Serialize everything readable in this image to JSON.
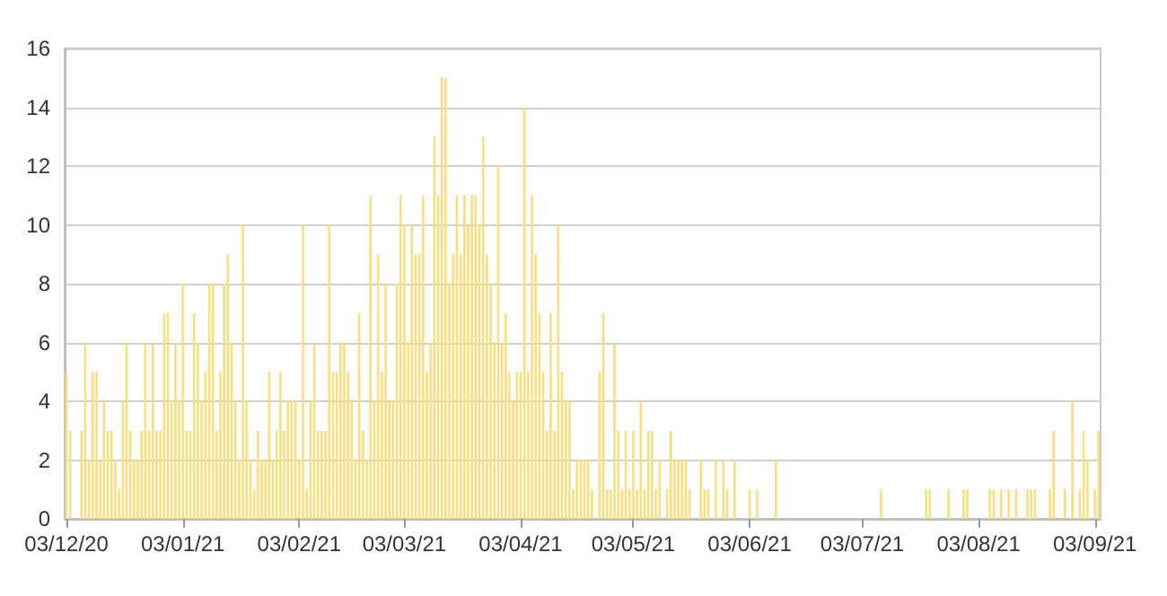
{
  "chart_data": {
    "type": "bar",
    "x": [
      "2020-12-03",
      "2020-12-04",
      "2020-12-05",
      "2020-12-06",
      "2020-12-07",
      "2020-12-08",
      "2020-12-09",
      "2020-12-10",
      "2020-12-11",
      "2020-12-12",
      "2020-12-13",
      "2020-12-14",
      "2020-12-15",
      "2020-12-16",
      "2020-12-17",
      "2020-12-18",
      "2020-12-19",
      "2020-12-20",
      "2020-12-21",
      "2020-12-22",
      "2020-12-23",
      "2020-12-24",
      "2020-12-25",
      "2020-12-26",
      "2020-12-27",
      "2020-12-28",
      "2020-12-29",
      "2020-12-30",
      "2020-12-31",
      "2021-01-01",
      "2021-01-02",
      "2021-01-03",
      "2021-01-04",
      "2021-01-05",
      "2021-01-06",
      "2021-01-07",
      "2021-01-08",
      "2021-01-09",
      "2021-01-10",
      "2021-01-11",
      "2021-01-12",
      "2021-01-13",
      "2021-01-14",
      "2021-01-15",
      "2021-01-16",
      "2021-01-17",
      "2021-01-18",
      "2021-01-19",
      "2021-01-20",
      "2021-01-21",
      "2021-01-22",
      "2021-01-23",
      "2021-01-24",
      "2021-01-25",
      "2021-01-26",
      "2021-01-27",
      "2021-01-28",
      "2021-01-29",
      "2021-01-30",
      "2021-01-31",
      "2021-02-01",
      "2021-02-02",
      "2021-02-03",
      "2021-02-04",
      "2021-02-05",
      "2021-02-06",
      "2021-02-07",
      "2021-02-08",
      "2021-02-09",
      "2021-02-10",
      "2021-02-11",
      "2021-02-12",
      "2021-02-13",
      "2021-02-14",
      "2021-02-15",
      "2021-02-16",
      "2021-02-17",
      "2021-02-18",
      "2021-02-19",
      "2021-02-20",
      "2021-02-21",
      "2021-02-22",
      "2021-02-23",
      "2021-02-24",
      "2021-02-25",
      "2021-02-26",
      "2021-02-27",
      "2021-02-28",
      "2021-03-01",
      "2021-03-02",
      "2021-03-03",
      "2021-03-04",
      "2021-03-05",
      "2021-03-06",
      "2021-03-07",
      "2021-03-08",
      "2021-03-09",
      "2021-03-10",
      "2021-03-11",
      "2021-03-12",
      "2021-03-13",
      "2021-03-14",
      "2021-03-15",
      "2021-03-16",
      "2021-03-17",
      "2021-03-18",
      "2021-03-19",
      "2021-03-20",
      "2021-03-21",
      "2021-03-22",
      "2021-03-23",
      "2021-03-24",
      "2021-03-25",
      "2021-03-26",
      "2021-03-27",
      "2021-03-28",
      "2021-03-29",
      "2021-03-30",
      "2021-03-31",
      "2021-04-01",
      "2021-04-02",
      "2021-04-03",
      "2021-04-04",
      "2021-04-05",
      "2021-04-06",
      "2021-04-07",
      "2021-04-08",
      "2021-04-09",
      "2021-04-10",
      "2021-04-11",
      "2021-04-12",
      "2021-04-13",
      "2021-04-14",
      "2021-04-15",
      "2021-04-16",
      "2021-04-17",
      "2021-04-18",
      "2021-04-19",
      "2021-04-20",
      "2021-04-21",
      "2021-04-22",
      "2021-04-23",
      "2021-04-24",
      "2021-04-25",
      "2021-04-26",
      "2021-04-27",
      "2021-04-28",
      "2021-04-29",
      "2021-04-30",
      "2021-05-01",
      "2021-05-02",
      "2021-05-03",
      "2021-05-04",
      "2021-05-05",
      "2021-05-06",
      "2021-05-07",
      "2021-05-08",
      "2021-05-09",
      "2021-05-10",
      "2021-05-11",
      "2021-05-12",
      "2021-05-13",
      "2021-05-14",
      "2021-05-15",
      "2021-05-16",
      "2021-05-17",
      "2021-05-18",
      "2021-05-19",
      "2021-05-20",
      "2021-05-21",
      "2021-05-22",
      "2021-05-23",
      "2021-05-24",
      "2021-05-25",
      "2021-05-26",
      "2021-05-27",
      "2021-05-28",
      "2021-05-29",
      "2021-05-30",
      "2021-05-31",
      "2021-06-01",
      "2021-06-02",
      "2021-06-03",
      "2021-06-04",
      "2021-06-05",
      "2021-06-06",
      "2021-06-07",
      "2021-06-08",
      "2021-06-09",
      "2021-06-10",
      "2021-06-11",
      "2021-06-12",
      "2021-06-13",
      "2021-06-14",
      "2021-06-15",
      "2021-06-16",
      "2021-06-17",
      "2021-06-18",
      "2021-06-19",
      "2021-06-20",
      "2021-06-21",
      "2021-06-22",
      "2021-06-23",
      "2021-06-24",
      "2021-06-25",
      "2021-06-26",
      "2021-06-27",
      "2021-06-28",
      "2021-06-29",
      "2021-06-30",
      "2021-07-01",
      "2021-07-02",
      "2021-07-03",
      "2021-07-04",
      "2021-07-05",
      "2021-07-06",
      "2021-07-07",
      "2021-07-08",
      "2021-07-09",
      "2021-07-10",
      "2021-07-11",
      "2021-07-12",
      "2021-07-13",
      "2021-07-14",
      "2021-07-15",
      "2021-07-16",
      "2021-07-17",
      "2021-07-18",
      "2021-07-19",
      "2021-07-20",
      "2021-07-21",
      "2021-07-22",
      "2021-07-23",
      "2021-07-24",
      "2021-07-25",
      "2021-07-26",
      "2021-07-27",
      "2021-07-28",
      "2021-07-29",
      "2021-07-30",
      "2021-07-31",
      "2021-08-01",
      "2021-08-02",
      "2021-08-03",
      "2021-08-04",
      "2021-08-05",
      "2021-08-06",
      "2021-08-07",
      "2021-08-08",
      "2021-08-09",
      "2021-08-10",
      "2021-08-11",
      "2021-08-12",
      "2021-08-13",
      "2021-08-14",
      "2021-08-15",
      "2021-08-16",
      "2021-08-17",
      "2021-08-18",
      "2021-08-19",
      "2021-08-20",
      "2021-08-21",
      "2021-08-22",
      "2021-08-23",
      "2021-08-24",
      "2021-08-25",
      "2021-08-26",
      "2021-08-27",
      "2021-08-28",
      "2021-08-29",
      "2021-08-30",
      "2021-08-31",
      "2021-09-01",
      "2021-09-02",
      "2021-09-03",
      "2021-09-04"
    ],
    "values": [
      5,
      3,
      0,
      0,
      3,
      6,
      2,
      5,
      5,
      2,
      4,
      3,
      3,
      2,
      1,
      4,
      6,
      3,
      2,
      2,
      3,
      6,
      3,
      6,
      3,
      3,
      7,
      7,
      4,
      6,
      4,
      8,
      3,
      3,
      7,
      6,
      4,
      5,
      8,
      8,
      3,
      5,
      8,
      9,
      6,
      4,
      2,
      10,
      4,
      2,
      1,
      3,
      2,
      2,
      5,
      2,
      3,
      5,
      3,
      4,
      4,
      4,
      2,
      10,
      1,
      4,
      6,
      3,
      3,
      3,
      10,
      5,
      5,
      6,
      6,
      5,
      4,
      2,
      7,
      3,
      2,
      11,
      4,
      9,
      5,
      8,
      4,
      4,
      8,
      11,
      10,
      6,
      10,
      9,
      9,
      11,
      5,
      6,
      13,
      11,
      15,
      15,
      8,
      9,
      11,
      9,
      11,
      10,
      11,
      11,
      10,
      13,
      9,
      8,
      6,
      12,
      6,
      7,
      5,
      4,
      5,
      5,
      14,
      5,
      11,
      9,
      7,
      5,
      3,
      7,
      3,
      10,
      5,
      4,
      4,
      1,
      2,
      2,
      2,
      2,
      1,
      0,
      5,
      7,
      1,
      1,
      6,
      3,
      1,
      3,
      1,
      3,
      1,
      4,
      1,
      3,
      3,
      1,
      2,
      0,
      1,
      3,
      2,
      2,
      2,
      2,
      1,
      0,
      0,
      2,
      1,
      1,
      0,
      2,
      0,
      2,
      1,
      0,
      2,
      0,
      0,
      0,
      1,
      0,
      1,
      0,
      0,
      0,
      0,
      2,
      0,
      0,
      0,
      0,
      0,
      0,
      0,
      0,
      0,
      0,
      0,
      0,
      0,
      0,
      0,
      0,
      0,
      0,
      0,
      0,
      0,
      0,
      0,
      0,
      0,
      0,
      0,
      1,
      0,
      0,
      0,
      0,
      0,
      0,
      0,
      0,
      0,
      0,
      0,
      1,
      1,
      0,
      0,
      0,
      0,
      1,
      0,
      0,
      0,
      1,
      1,
      0,
      0,
      0,
      0,
      0,
      1,
      1,
      0,
      1,
      0,
      1,
      0,
      1,
      0,
      0,
      1,
      1,
      1,
      0,
      0,
      0,
      1,
      3,
      0,
      0,
      1,
      0,
      4,
      0,
      1,
      3,
      2,
      0,
      1,
      3
    ],
    "color": "#f9df80",
    "xlim": [
      "2020-12-02T12:00",
      "2021-09-04T12:00"
    ],
    "xticks": [
      {
        "value": "2020-12-03",
        "label": "03/12/20"
      },
      {
        "value": "2021-01-03",
        "label": "03/01/21"
      },
      {
        "value": "2021-02-03",
        "label": "03/02/21"
      },
      {
        "value": "2021-03-03",
        "label": "03/03/21"
      },
      {
        "value": "2021-04-03",
        "label": "03/04/21"
      },
      {
        "value": "2021-05-03",
        "label": "03/05/21"
      },
      {
        "value": "2021-06-03",
        "label": "03/06/21"
      },
      {
        "value": "2021-07-03",
        "label": "03/07/21"
      },
      {
        "value": "2021-08-03",
        "label": "03/08/21"
      },
      {
        "value": "2021-09-03",
        "label": "03/09/21"
      }
    ],
    "ylim": [
      0,
      16
    ],
    "yticks": [
      0,
      2,
      4,
      6,
      8,
      10,
      12,
      14,
      16
    ],
    "grid": "y"
  }
}
